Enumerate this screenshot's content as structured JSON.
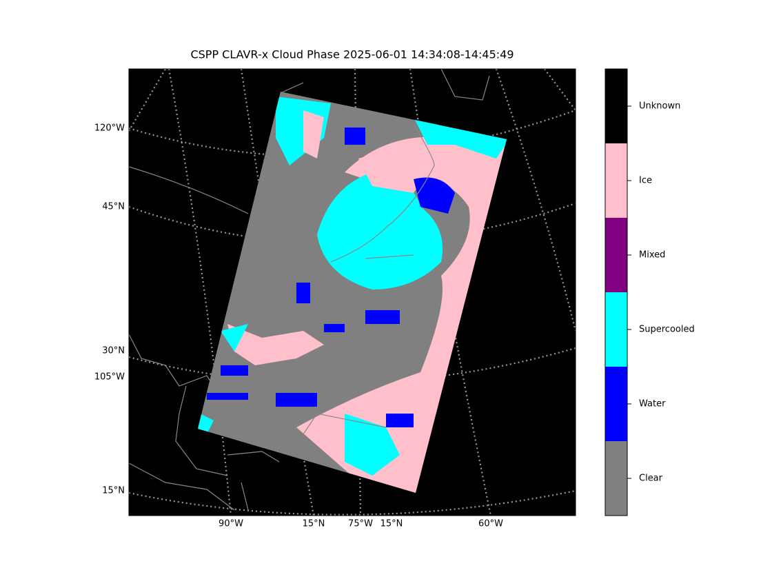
{
  "title": "CSPP CLAVR-x Cloud Phase 2025-06-01 14:34:08-14:45:49",
  "map": {
    "left_labels": [
      "120°W",
      "45°N",
      "30°N",
      "105°W",
      "15°N"
    ],
    "bottom_labels": [
      "90°W",
      "15°N",
      "75°W",
      "15°N",
      "60°W"
    ]
  },
  "colorbar": {
    "categories": [
      {
        "label": "Clear",
        "color": "#808080"
      },
      {
        "label": "Water",
        "color": "#0000ff"
      },
      {
        "label": "Supercooled",
        "color": "#00ffff"
      },
      {
        "label": "Mixed",
        "color": "#800080"
      },
      {
        "label": "Ice",
        "color": "#ffc0cb"
      },
      {
        "label": "Unknown",
        "color": "#000000"
      }
    ]
  }
}
